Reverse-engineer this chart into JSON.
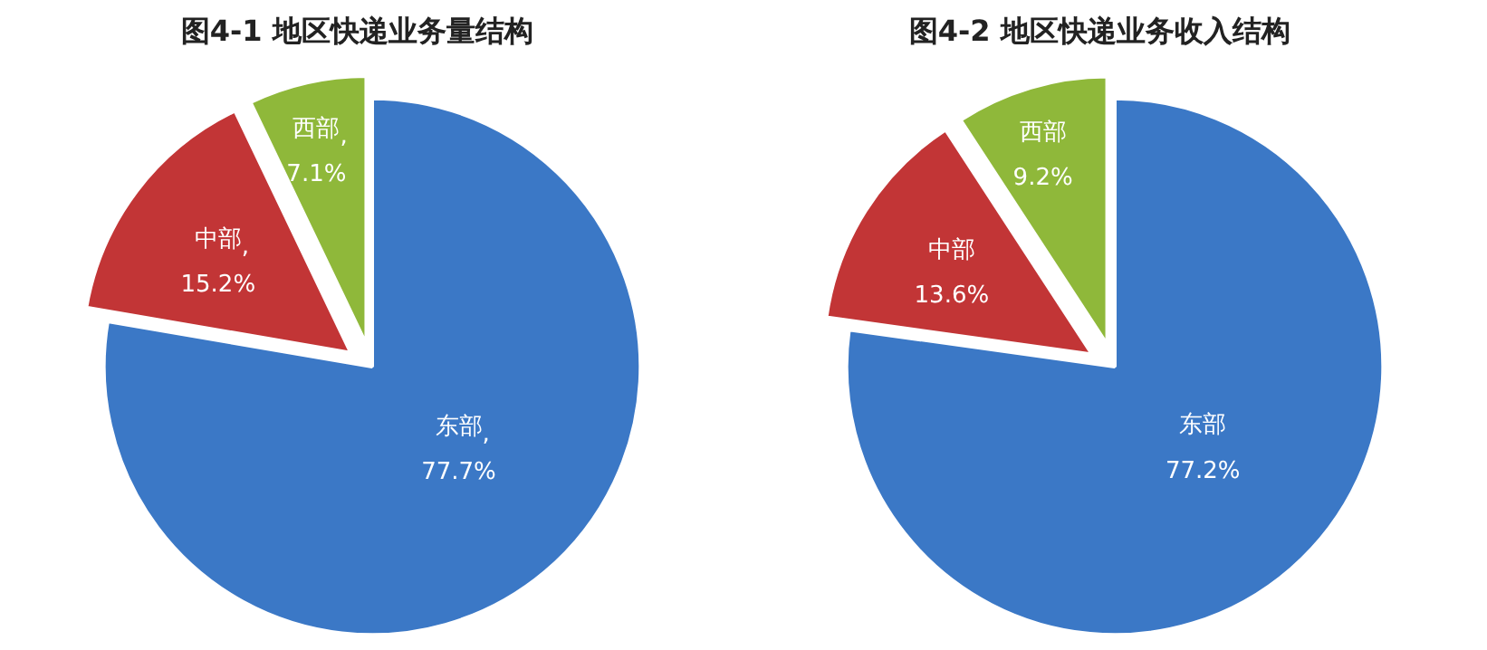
{
  "chart_data": [
    {
      "type": "pie",
      "title": "图4-1    地区快递业务量结构",
      "categories": [
        "东部",
        "中部",
        "西部"
      ],
      "values": [
        77.7,
        15.2,
        7.1
      ],
      "colors": [
        "#3b78c6",
        "#c23536",
        "#8fb83a"
      ],
      "value_labels": [
        ",77.7%",
        ",15.2%",
        ",7.1%"
      ]
    },
    {
      "type": "pie",
      "title": "图4-2    地区快递业务收入结构",
      "categories": [
        "东部",
        "中部",
        "西部"
      ],
      "values": [
        77.2,
        13.6,
        9.2
      ],
      "colors": [
        "#3b78c6",
        "#c23536",
        "#8fb83a"
      ],
      "value_labels": [
        "77.2%",
        "13.6%",
        "9.2%"
      ]
    }
  ]
}
